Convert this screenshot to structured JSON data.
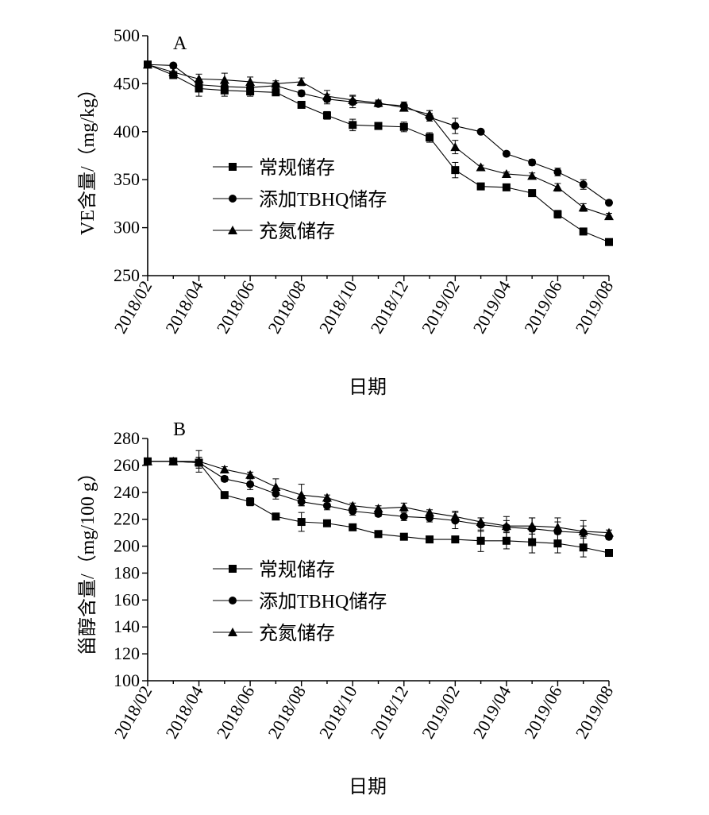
{
  "chart_data": [
    {
      "panel": "A",
      "type": "line",
      "xlabel": "日期",
      "ylabel": "VE含量/（mg/kg）",
      "ylim": [
        250,
        500
      ],
      "yticks": [
        250,
        300,
        350,
        400,
        450,
        500
      ],
      "x": [
        "2018/02",
        "2018/03",
        "2018/04",
        "2018/05",
        "2018/06",
        "2018/07",
        "2018/08",
        "2018/09",
        "2018/10",
        "2018/11",
        "2018/12",
        "2019/01",
        "2019/02",
        "2019/03",
        "2019/04",
        "2019/05",
        "2019/06",
        "2019/07",
        "2019/08"
      ],
      "xticklabels": [
        "2018/02",
        "2018/04",
        "2018/06",
        "2018/08",
        "2018/10",
        "2018/12",
        "2019/02",
        "2019/04",
        "2019/06",
        "2019/08"
      ],
      "legend_position": "center-left",
      "series": [
        {
          "name": "常规储存",
          "marker": "square",
          "values": [
            470,
            459,
            445,
            443,
            442,
            441,
            428,
            417,
            407,
            406,
            405,
            394,
            360,
            343,
            342,
            336,
            314,
            296,
            285
          ],
          "errors": [
            2,
            3,
            8,
            6,
            5,
            3,
            2,
            4,
            6,
            2,
            5,
            5,
            8,
            2,
            2,
            3,
            4,
            2,
            2
          ]
        },
        {
          "name": "添加TBHQ储存",
          "marker": "circle",
          "values": [
            470,
            469,
            449,
            447,
            446,
            448,
            440,
            434,
            431,
            429,
            427,
            415,
            406,
            400,
            377,
            368,
            358,
            345,
            326
          ],
          "errors": [
            2,
            2,
            5,
            5,
            4,
            3,
            3,
            5,
            6,
            3,
            4,
            4,
            8,
            2,
            2,
            3,
            4,
            5,
            2
          ]
        },
        {
          "name": "充氮储存",
          "marker": "triangle",
          "values": [
            470,
            462,
            455,
            454,
            452,
            450,
            452,
            437,
            433,
            430,
            425,
            418,
            384,
            363,
            356,
            354,
            342,
            321,
            312
          ],
          "errors": [
            2,
            4,
            5,
            7,
            5,
            3,
            4,
            6,
            5,
            3,
            3,
            4,
            7,
            2,
            2,
            3,
            4,
            4,
            3
          ]
        }
      ]
    },
    {
      "panel": "B",
      "type": "line",
      "xlabel": "日期",
      "ylabel": "甾醇含量/（mg/100 g）",
      "ylim": [
        100,
        280
      ],
      "yticks": [
        100,
        120,
        140,
        160,
        180,
        200,
        220,
        240,
        260,
        280
      ],
      "x": [
        "2018/02",
        "2018/03",
        "2018/04",
        "2018/05",
        "2018/06",
        "2018/07",
        "2018/08",
        "2018/09",
        "2018/10",
        "2018/11",
        "2018/12",
        "2019/01",
        "2019/02",
        "2019/03",
        "2019/04",
        "2019/05",
        "2019/06",
        "2019/07",
        "2019/08"
      ],
      "xticklabels": [
        "2018/02",
        "2018/04",
        "2018/06",
        "2018/08",
        "2018/10",
        "2018/12",
        "2019/02",
        "2019/04",
        "2019/06",
        "2019/08"
      ],
      "legend_position": "center-left",
      "series": [
        {
          "name": "常规储存",
          "marker": "square",
          "values": [
            263,
            263,
            262,
            238,
            233,
            222,
            218,
            217,
            214,
            209,
            207,
            205,
            205,
            204,
            204,
            203,
            202,
            199,
            195
          ],
          "errors": [
            2,
            2,
            4,
            2,
            3,
            2,
            7,
            2,
            2,
            2,
            2,
            2,
            2,
            8,
            6,
            8,
            7,
            7,
            2
          ]
        },
        {
          "name": "添加TBHQ储存",
          "marker": "circle",
          "values": [
            263,
            263,
            262,
            250,
            246,
            239,
            233,
            230,
            226,
            224,
            222,
            221,
            219,
            216,
            214,
            213,
            211,
            210,
            207
          ],
          "errors": [
            2,
            2,
            4,
            2,
            4,
            4,
            3,
            3,
            3,
            2,
            3,
            3,
            6,
            5,
            8,
            8,
            10,
            9,
            2
          ]
        },
        {
          "name": "充氮储存",
          "marker": "triangle",
          "values": [
            263,
            263,
            263,
            257,
            253,
            244,
            238,
            236,
            230,
            228,
            229,
            225,
            222,
            218,
            215,
            215,
            214,
            211,
            210
          ],
          "errors": [
            2,
            2,
            8,
            2,
            2,
            6,
            8,
            2,
            2,
            2,
            3,
            2,
            4,
            3,
            4,
            6,
            4,
            4,
            2
          ]
        }
      ]
    }
  ]
}
